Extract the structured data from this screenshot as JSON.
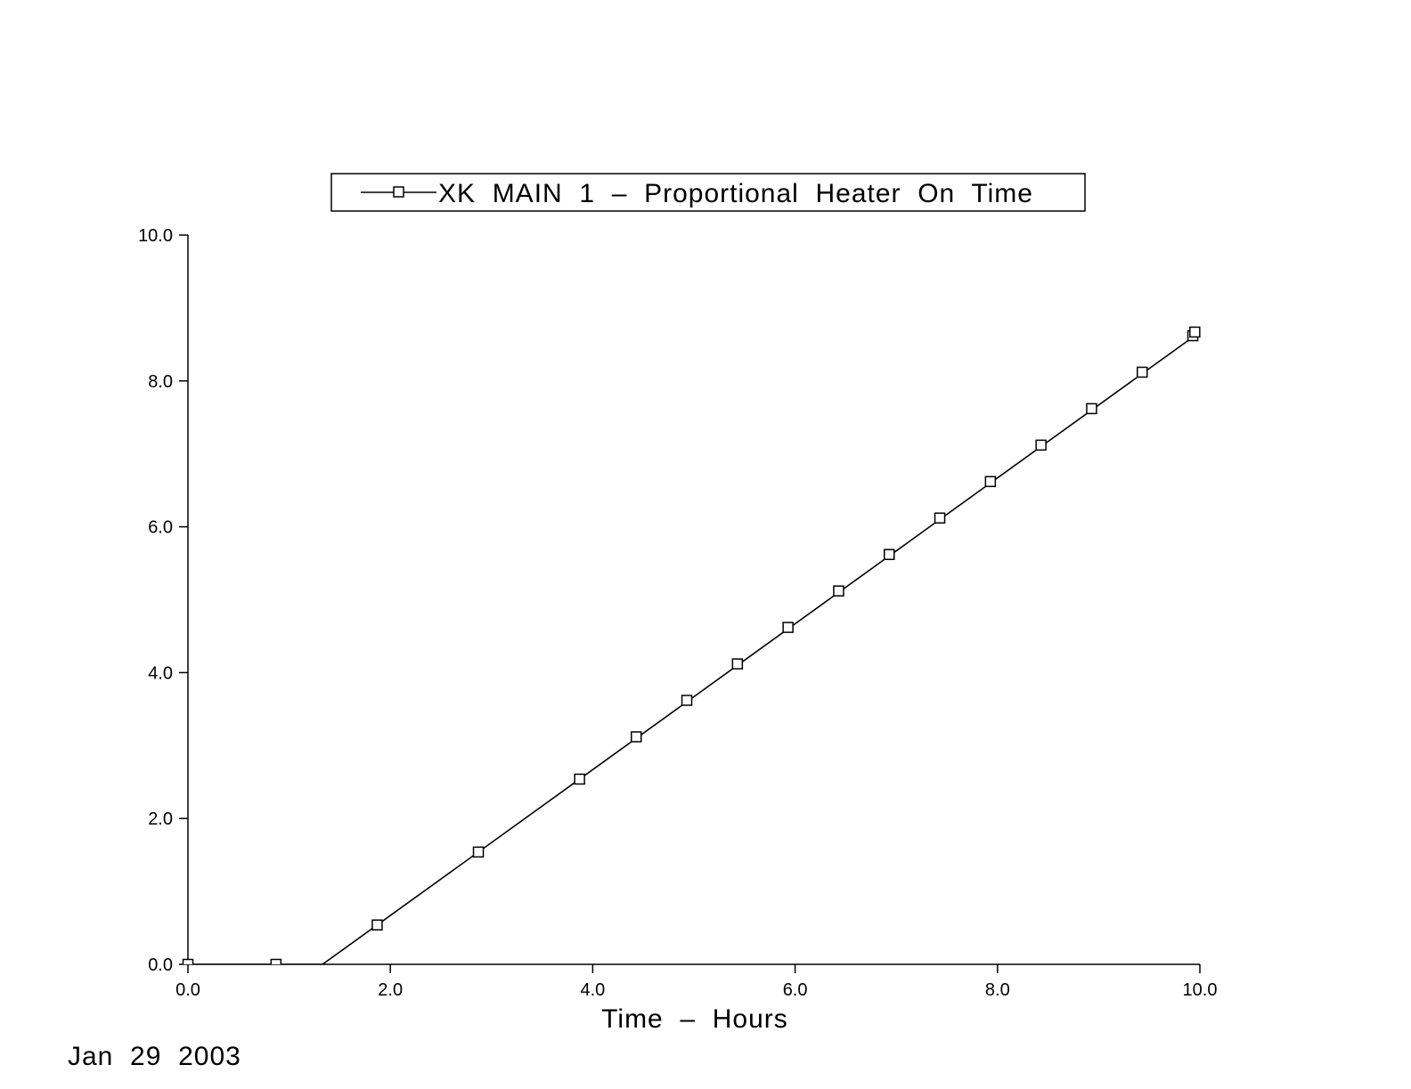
{
  "chart_data": {
    "type": "line",
    "title": "",
    "xlabel": "Time  –  Hours",
    "ylabel": "",
    "xlim": [
      0,
      10
    ],
    "ylim": [
      0,
      10
    ],
    "xticks": [
      "0.0",
      "2.0",
      "4.0",
      "6.0",
      "8.0",
      "10.0"
    ],
    "yticks": [
      "0.0",
      "2.0",
      "4.0",
      "6.0",
      "8.0",
      "10.0"
    ],
    "grid": false,
    "legend_position": "top",
    "series": [
      {
        "name": "XK  MAIN  1  –  Proportional  Heater  On  Time",
        "marker": "square",
        "color": "#000000",
        "line": {
          "x": [
            0,
            1.33,
            10
          ],
          "y": [
            0,
            0,
            8.67
          ]
        },
        "points": [
          {
            "x": 0.0,
            "y": 0.0
          },
          {
            "x": 0.87,
            "y": 0.0
          },
          {
            "x": 1.87,
            "y": 0.54
          },
          {
            "x": 2.87,
            "y": 1.54
          },
          {
            "x": 3.87,
            "y": 2.54
          },
          {
            "x": 4.43,
            "y": 3.12
          },
          {
            "x": 4.93,
            "y": 3.62
          },
          {
            "x": 5.43,
            "y": 4.12
          },
          {
            "x": 5.93,
            "y": 4.62
          },
          {
            "x": 6.43,
            "y": 5.12
          },
          {
            "x": 6.93,
            "y": 5.62
          },
          {
            "x": 7.43,
            "y": 6.12
          },
          {
            "x": 7.93,
            "y": 6.62
          },
          {
            "x": 8.43,
            "y": 7.12
          },
          {
            "x": 8.93,
            "y": 7.62
          },
          {
            "x": 9.43,
            "y": 8.12
          },
          {
            "x": 9.93,
            "y": 8.62
          },
          {
            "x": 9.95,
            "y": 8.67
          }
        ]
      }
    ]
  },
  "footer": {
    "date": "Jan  29  2003"
  }
}
